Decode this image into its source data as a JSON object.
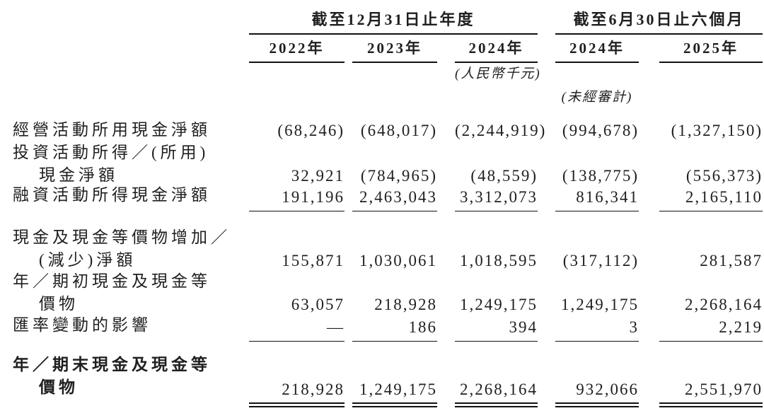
{
  "header": {
    "annual_period": "截至12月31日止年度",
    "interim_period": "截至6月30日止六個月",
    "columns": [
      "2022年",
      "2023年",
      "2024年",
      "2024年",
      "2025年"
    ],
    "currency_note": "(人民幣千元)",
    "unaudited_note": "(未經審計)"
  },
  "rows": {
    "operating": {
      "label": "經營活動所用現金淨額",
      "values": [
        "(68,246)",
        "(648,017)",
        "(2,244,919)",
        "(994,678)",
        "(1,327,150)"
      ]
    },
    "investing_label_line1": "投資活動所得／(所用)",
    "investing": {
      "label": "現金淨額",
      "values": [
        "32,921",
        "(784,965)",
        "(48,559)",
        "(138,775)",
        "(556,373)"
      ]
    },
    "financing": {
      "label": "融資活動所得現金淨額",
      "values": [
        "191,196",
        "2,463,043",
        "3,312,073",
        "816,341",
        "2,165,110"
      ]
    },
    "net_change_label_line1": "現金及現金等價物增加／",
    "net_change": {
      "label": "(減少)淨額",
      "values": [
        "155,871",
        "1,030,061",
        "1,018,595",
        "(317,112)",
        "281,587"
      ]
    },
    "beginning_label_line1": "年／期初現金及現金等",
    "beginning": {
      "label": "價物",
      "values": [
        "63,057",
        "218,928",
        "1,249,175",
        "1,249,175",
        "2,268,164"
      ]
    },
    "fx_effect": {
      "label": "匯率變動的影響",
      "values": [
        "—",
        "186",
        "394",
        "3",
        "2,219"
      ]
    },
    "ending_label_line1": "年／期末現金及現金等",
    "ending": {
      "label": "價物",
      "values": [
        "218,928",
        "1,249,175",
        "2,268,164",
        "932,066",
        "2,551,970"
      ]
    }
  }
}
